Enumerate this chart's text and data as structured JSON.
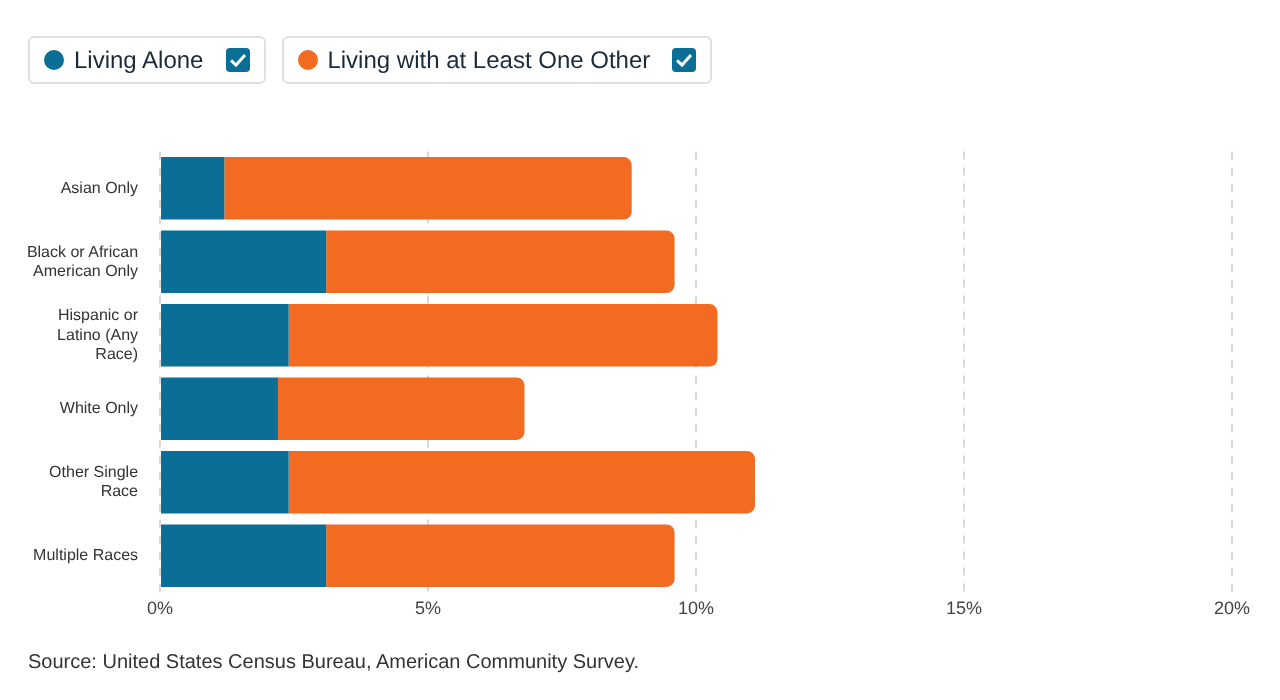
{
  "chart_data": {
    "type": "bar",
    "orientation": "horizontal",
    "stacked": true,
    "categories": [
      "Asian Only",
      "Black or African American Only",
      "Hispanic or Latino (Any Race)",
      "White Only",
      "Other Single Race",
      "Multiple Races"
    ],
    "series": [
      {
        "name": "Living Alone",
        "color": "#0b6e96",
        "values": [
          1.2,
          3.1,
          2.4,
          2.2,
          2.4,
          3.1
        ]
      },
      {
        "name": "Living with at Least One Other",
        "color": "#f26b21",
        "values": [
          7.6,
          6.5,
          8.0,
          4.6,
          8.7,
          6.5
        ]
      }
    ],
    "xlim": [
      0,
      20
    ],
    "xticks": [
      {
        "value": 0,
        "label": "0%"
      },
      {
        "value": 5,
        "label": "5%"
      },
      {
        "value": 10,
        "label": "10%"
      },
      {
        "value": 15,
        "label": "15%"
      },
      {
        "value": 20,
        "label": "20%"
      }
    ],
    "grid": "x",
    "legend": "top left",
    "annotations": [
      "Source: United States Census Bureau, American Community Survey."
    ]
  }
}
